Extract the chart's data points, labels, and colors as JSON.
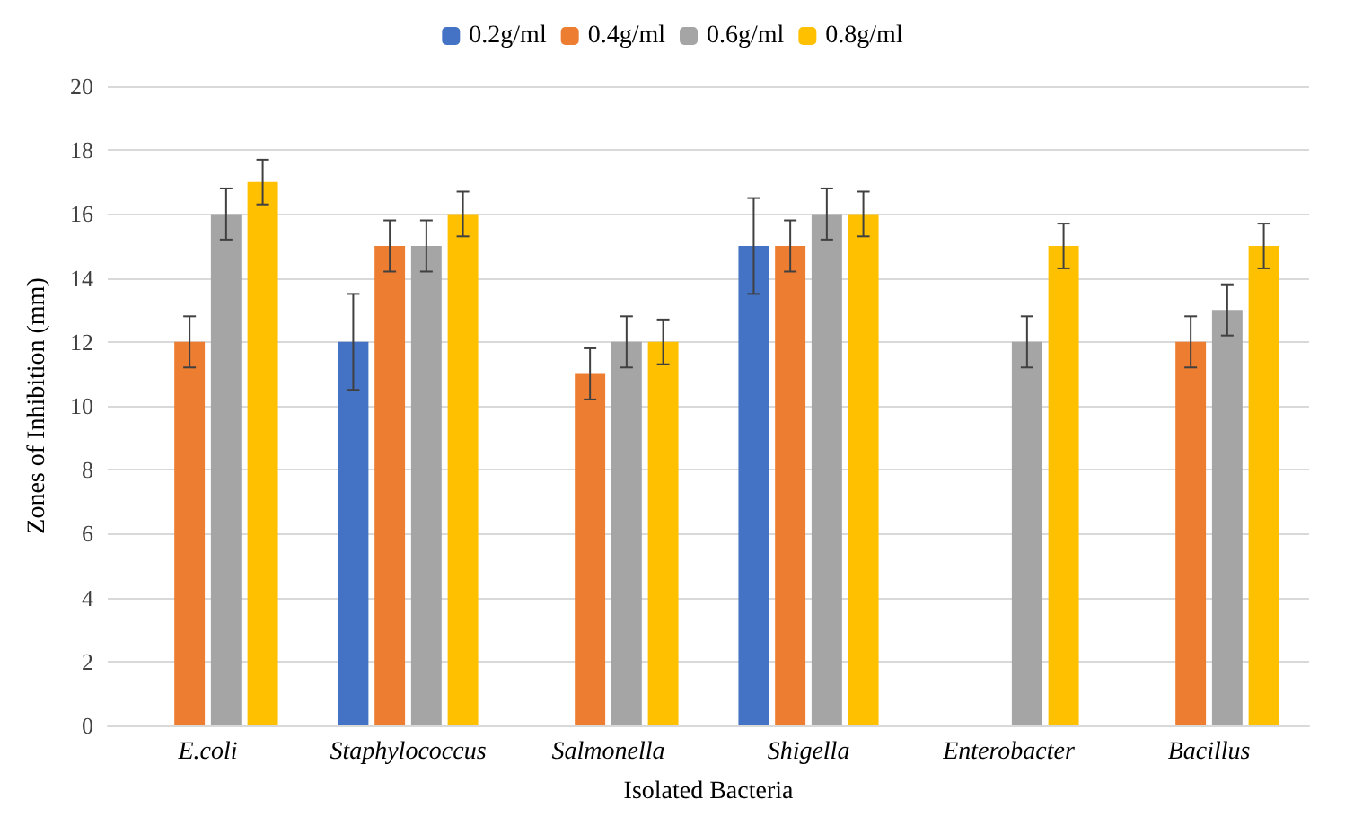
{
  "chart_data": {
    "type": "bar",
    "xlabel": "Isolated Bacteria",
    "ylabel": "Zones of Inhibition (mm)",
    "categories": [
      "E.coli",
      "Staphylococcus",
      "Salmonella",
      "Shigella",
      "Enterobacter",
      "Bacillus"
    ],
    "series": [
      {
        "name": "0.2g/ml",
        "color": "#4472c4",
        "values": [
          null,
          12,
          null,
          15,
          null,
          null
        ],
        "errors": [
          null,
          1.5,
          null,
          1.5,
          null,
          null
        ]
      },
      {
        "name": "0.4g/ml",
        "color": "#ed7d31",
        "values": [
          12,
          15,
          11,
          15,
          null,
          12
        ],
        "errors": [
          0.8,
          0.8,
          0.8,
          0.8,
          null,
          0.8
        ]
      },
      {
        "name": "0.6g/ml",
        "color": "#a5a5a5",
        "values": [
          16,
          15,
          12,
          16,
          12,
          13
        ],
        "errors": [
          0.8,
          0.8,
          0.8,
          0.8,
          0.8,
          0.8
        ]
      },
      {
        "name": "0.8g/ml",
        "color": "#ffc000",
        "values": [
          17,
          16,
          12,
          16,
          15,
          15
        ],
        "errors": [
          0.7,
          0.7,
          0.7,
          0.7,
          0.7,
          0.7
        ]
      }
    ],
    "ylim": [
      0,
      20
    ],
    "yticks": [
      0,
      2,
      4,
      6,
      8,
      10,
      12,
      14,
      16,
      18,
      20
    ],
    "grid": "y",
    "legend": "top"
  }
}
